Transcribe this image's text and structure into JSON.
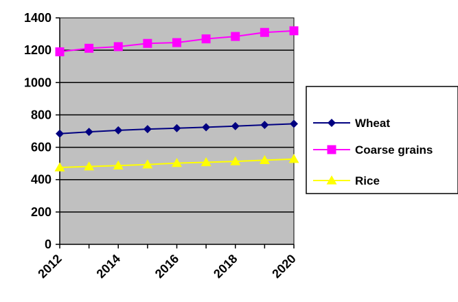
{
  "chart_data": {
    "type": "line",
    "title": "",
    "xlabel": "",
    "ylabel": "",
    "x": [
      2012,
      2013,
      2014,
      2015,
      2016,
      2017,
      2018,
      2019,
      2020
    ],
    "x_tick_labels": [
      "2012",
      "2014",
      "2016",
      "2018",
      "2020"
    ],
    "y_tick_labels": [
      "0",
      "200",
      "400",
      "600",
      "800",
      "1000",
      "1200",
      "1400"
    ],
    "ylim": [
      0,
      1400
    ],
    "grid": "horizontal",
    "plot_background": "#c0c0c0",
    "legend_position": "right",
    "series": [
      {
        "name": "Wheat",
        "color": "#000080",
        "marker": "diamond",
        "values": [
          684,
          695,
          705,
          712,
          718,
          724,
          731,
          738,
          745
        ]
      },
      {
        "name": "Coarse grains",
        "color": "#ff00ff",
        "marker": "square",
        "values": [
          1190,
          1212,
          1222,
          1242,
          1247,
          1270,
          1285,
          1310,
          1320
        ]
      },
      {
        "name": "Rice",
        "color": "#ffff00",
        "marker": "triangle",
        "values": [
          475,
          481,
          487,
          493,
          502,
          507,
          513,
          520,
          527
        ]
      }
    ]
  }
}
